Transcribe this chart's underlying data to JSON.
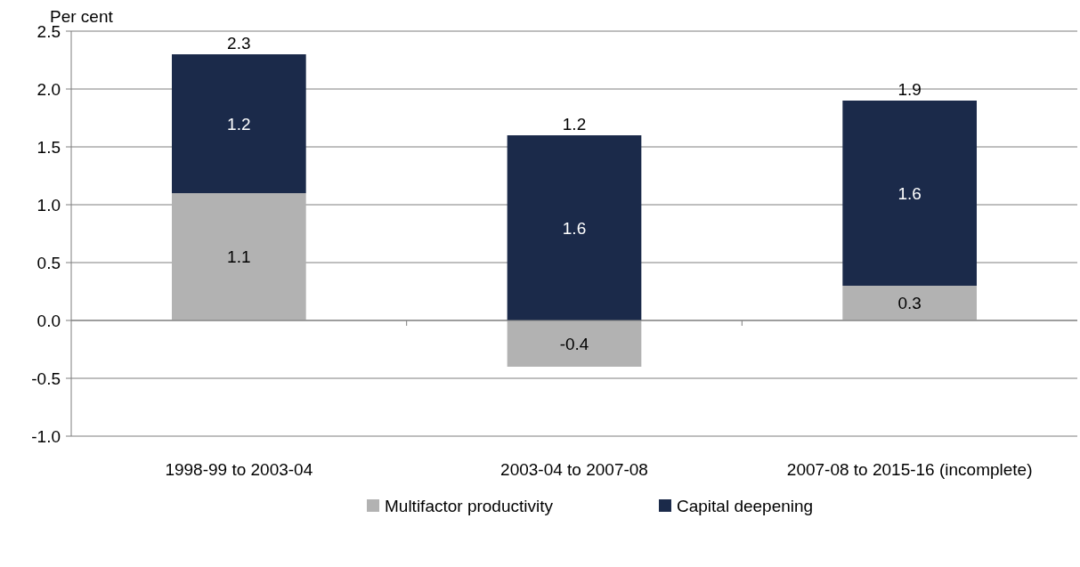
{
  "chart_data": {
    "type": "bar",
    "stacked": true,
    "ylabel": "Per cent",
    "categories": [
      "1998-99 to 2003-04",
      "2003-04 to 2007-08",
      "2007-08 to 2015-16 (incomplete)"
    ],
    "series": [
      {
        "name": "Multifactor productivity",
        "color": "#b2b2b2",
        "values": [
          1.1,
          -0.4,
          0.3
        ]
      },
      {
        "name": "Capital deepening",
        "color": "#1b2a4a",
        "values": [
          1.2,
          1.6,
          1.6
        ]
      }
    ],
    "ylim": [
      -1,
      2.5
    ],
    "yticks": [
      {
        "value": -1,
        "label": "-1.0"
      },
      {
        "value": -0.5,
        "label": "-0.5"
      },
      {
        "value": 0,
        "label": "0.0"
      },
      {
        "value": 0.5,
        "label": "0.5"
      },
      {
        "value": 1,
        "label": "1.0"
      },
      {
        "value": 1.5,
        "label": "1.5"
      },
      {
        "value": 2,
        "label": "2.0"
      },
      {
        "value": 2.5,
        "label": "2.5"
      }
    ],
    "grid": "y",
    "data_labels": true,
    "totals": [
      "2.3",
      "1.2",
      "1.9"
    ],
    "legend": "bottom"
  }
}
